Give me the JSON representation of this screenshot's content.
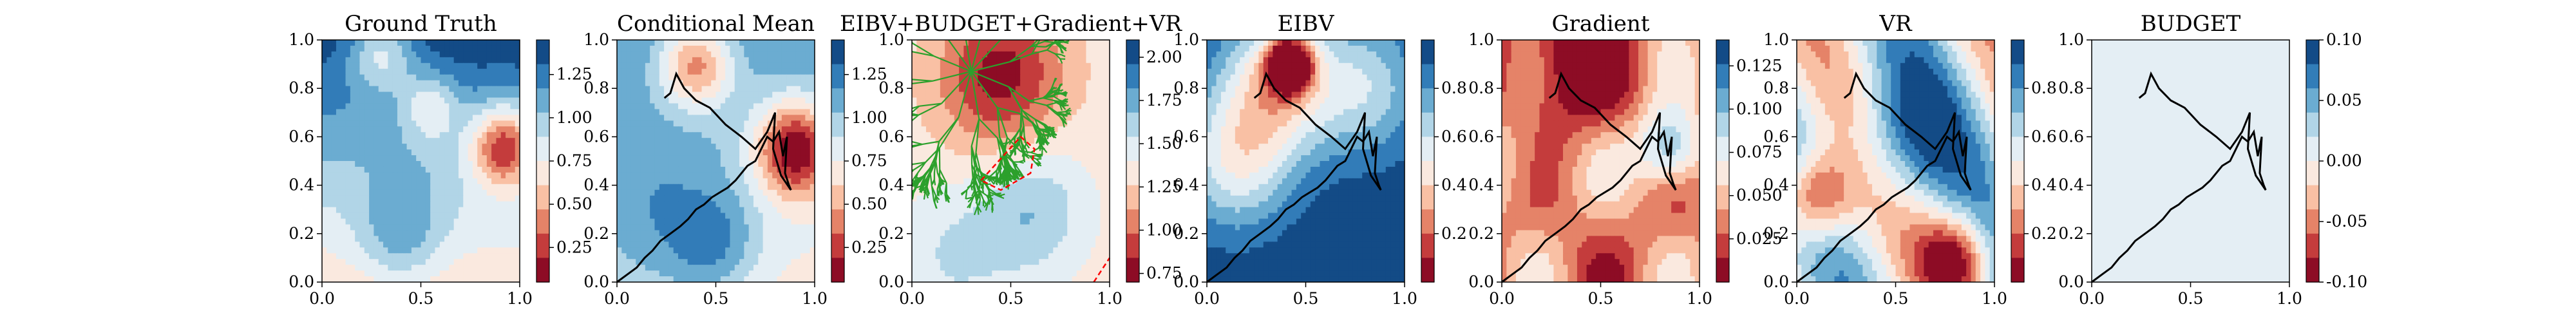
{
  "chart_data": [
    {
      "type": "heatmap",
      "title": "Ground Truth",
      "xlim": [
        0,
        1
      ],
      "ylim": [
        0,
        1
      ],
      "xticks": [
        "0.0",
        "0.5",
        "1.0"
      ],
      "yticks": [
        "0.0",
        "0.2",
        "0.4",
        "0.6",
        "0.8",
        "1.0"
      ],
      "colorbar": {
        "ticks": [
          "0.25",
          "0.50",
          "0.75",
          "1.00",
          "1.25"
        ],
        "range": [
          0.05,
          1.45
        ]
      },
      "colormap": "RdBu",
      "grid": false
    },
    {
      "type": "heatmap",
      "title": "Conditional Mean",
      "xlim": [
        0,
        1
      ],
      "ylim": [
        0,
        1
      ],
      "xticks": [
        "0.0",
        "0.5",
        "1.0"
      ],
      "yticks": [
        "0.0",
        "0.2",
        "0.4",
        "0.6",
        "0.8",
        "1.0"
      ],
      "colorbar": {
        "ticks": [
          "0.25",
          "0.50",
          "0.75",
          "1.00",
          "1.25"
        ],
        "range": [
          0.05,
          1.45
        ]
      },
      "colormap": "RdBu",
      "grid": false
    },
    {
      "type": "heatmap",
      "title": "EIBV+BUDGET+Gradient+VR",
      "xlim": [
        0,
        1
      ],
      "ylim": [
        0,
        1
      ],
      "xticks": [
        "0.0",
        "0.5",
        "1.0"
      ],
      "yticks": [
        "0.0",
        "0.2",
        "0.4",
        "0.6",
        "0.8",
        "1.0"
      ],
      "colorbar": {
        "ticks": [
          "0.75",
          "1.00",
          "1.25",
          "1.50",
          "1.75",
          "2.00"
        ],
        "range": [
          0.7,
          2.1
        ]
      },
      "colormap": "RdBu",
      "grid": false
    },
    {
      "type": "heatmap",
      "title": "EIBV",
      "xlim": [
        0,
        1
      ],
      "ylim": [
        0,
        1
      ],
      "xticks": [
        "0.0",
        "0.5",
        "1.0"
      ],
      "yticks": [
        "0.0",
        "0.2",
        "0.4",
        "0.6",
        "0.8",
        "1.0"
      ],
      "colorbar": {
        "ticks": [
          "0.2",
          "0.4",
          "0.6",
          "0.8"
        ],
        "range": [
          0.0,
          1.0
        ]
      },
      "colormap": "RdBu",
      "grid": false
    },
    {
      "type": "heatmap",
      "title": "Gradient",
      "xlim": [
        0,
        1
      ],
      "ylim": [
        0,
        1
      ],
      "xticks": [
        "0.0",
        "0.5",
        "1.0"
      ],
      "yticks": [
        "0.0",
        "0.2",
        "0.4",
        "0.6",
        "0.8",
        "1.0"
      ],
      "colorbar": {
        "ticks": [
          "0.025",
          "0.050",
          "0.075",
          "0.100",
          "0.125"
        ],
        "range": [
          0.0,
          0.14
        ]
      },
      "colormap": "RdBu",
      "grid": false
    },
    {
      "type": "heatmap",
      "title": "VR",
      "xlim": [
        0,
        1
      ],
      "ylim": [
        0,
        1
      ],
      "xticks": [
        "0.0",
        "0.5",
        "1.0"
      ],
      "yticks": [
        "0.0",
        "0.2",
        "0.4",
        "0.6",
        "0.8",
        "1.0"
      ],
      "colorbar": {
        "ticks": [
          "0.2",
          "0.4",
          "0.6",
          "0.8"
        ],
        "range": [
          0.0,
          1.0
        ]
      },
      "colormap": "RdBu",
      "grid": false
    },
    {
      "type": "heatmap",
      "title": "BUDGET",
      "xlim": [
        0,
        1
      ],
      "ylim": [
        0,
        1
      ],
      "xticks": [
        "0.0",
        "0.5",
        "1.0"
      ],
      "yticks": [
        "0.0",
        "0.2",
        "0.4",
        "0.6",
        "0.8",
        "1.0"
      ],
      "colorbar": {
        "ticks": [
          "-0.10",
          "-0.05",
          "0.00",
          "0.05",
          "0.10"
        ],
        "range": [
          -0.1,
          0.1
        ]
      },
      "colormap": "RdBu",
      "grid": false
    }
  ],
  "trajectory": {
    "color": "#000000",
    "x": [
      0.0,
      0.05,
      0.1,
      0.14,
      0.18,
      0.22,
      0.27,
      0.32,
      0.36,
      0.4,
      0.44,
      0.48,
      0.52,
      0.56,
      0.6,
      0.63,
      0.66,
      0.7,
      0.73,
      0.76,
      0.79,
      0.82,
      0.84,
      0.86,
      0.85,
      0.87,
      0.88,
      0.83,
      0.79,
      0.8,
      0.76,
      0.7,
      0.63,
      0.55,
      0.47,
      0.4,
      0.34,
      0.3,
      0.27,
      0.24
    ],
    "y": [
      0.0,
      0.03,
      0.06,
      0.1,
      0.13,
      0.17,
      0.2,
      0.23,
      0.26,
      0.3,
      0.32,
      0.35,
      0.37,
      0.39,
      0.42,
      0.45,
      0.48,
      0.5,
      0.55,
      0.6,
      0.58,
      0.62,
      0.52,
      0.6,
      0.45,
      0.4,
      0.38,
      0.44,
      0.55,
      0.7,
      0.62,
      0.55,
      0.6,
      0.65,
      0.72,
      0.75,
      0.8,
      0.86,
      0.78,
      0.76
    ]
  },
  "colors": {
    "dark_red": "#67001f",
    "light": "#f7f7f7",
    "dark_blue": "#053061",
    "tree": "#2ca02c",
    "polygon": "#ff0000"
  }
}
